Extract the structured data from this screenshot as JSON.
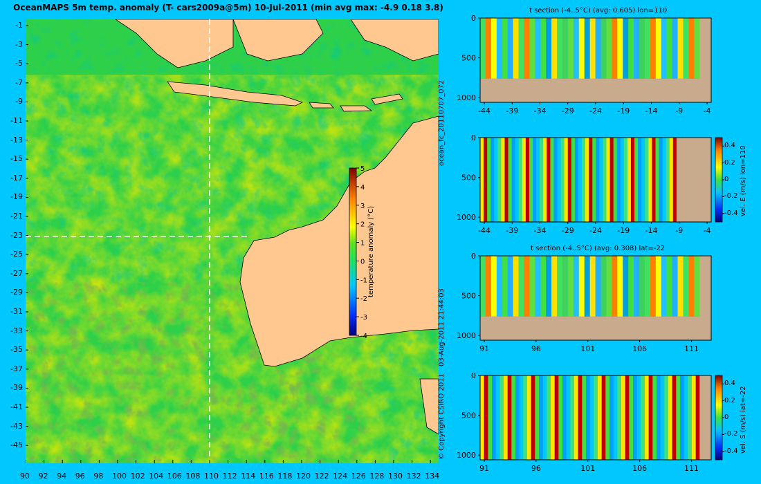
{
  "title": "OceanMAPS 5m temp. anomaly (T- cars2009a@5m) 10-Jul-2011 (min avg max: -4.9 0.18 3.8)",
  "map": {
    "lat_ticks": [
      "-1",
      "-3",
      "-5",
      "-7",
      "-9",
      "-11",
      "-13",
      "-15",
      "-17",
      "-19",
      "-21",
      "-23",
      "-25",
      "-27",
      "-29",
      "-31",
      "-33",
      "-35",
      "-37",
      "-39",
      "-41",
      "-43",
      "-45"
    ],
    "lon_ticks": [
      "90",
      "92",
      "94",
      "96",
      "98",
      "100",
      "102",
      "104",
      "106",
      "108",
      "110",
      "112",
      "114",
      "116",
      "118",
      "120",
      "122",
      "124",
      "126",
      "128",
      "130",
      "132",
      "134"
    ],
    "section_lon": "110",
    "section_lat": "-22",
    "colorbar": {
      "label": "temperature anomaly (°C)",
      "ticks": [
        "5",
        "4",
        "3",
        "2",
        "1",
        "0",
        "-1",
        "-2",
        "-3",
        "-4"
      ],
      "range": [
        -4,
        5
      ]
    }
  },
  "side_text": {
    "run_id": "ocean_fc_20110707_072",
    "timestamp": "03-Aug-2011 21:44:03",
    "copyright": "© Copyright CSIRO 2011"
  },
  "panels": [
    {
      "title": "t section (-4..5°C) (avg: 0.605) lon=110",
      "y_ticks": [
        "0",
        "500",
        "1000"
      ],
      "x_ticks": [
        "-44",
        "-39",
        "-34",
        "-29",
        "-24",
        "-19",
        "-14",
        "-9",
        "-4"
      ],
      "colorbar": false
    },
    {
      "title": "",
      "y_ticks": [
        "0",
        "500",
        "1000"
      ],
      "x_ticks": [
        "-44",
        "-39",
        "-34",
        "-29",
        "-24",
        "-19",
        "-14",
        "-9",
        "-4"
      ],
      "colorbar": true,
      "colorbar_label": "vel. E (m/s) lon=110",
      "colorbar_ticks": [
        "0.4",
        "0.2",
        "0",
        "-0.2",
        "-0.4"
      ]
    },
    {
      "title": "t section (-4..5°C) (avg: 0.308) lat=-22",
      "y_ticks": [
        "0",
        "500",
        "1000"
      ],
      "x_ticks": [
        "91",
        "96",
        "101",
        "106",
        "111"
      ],
      "colorbar": false
    },
    {
      "title": "",
      "y_ticks": [
        "0",
        "500",
        "1000"
      ],
      "x_ticks": [
        "91",
        "96",
        "101",
        "106",
        "111"
      ],
      "colorbar": true,
      "colorbar_label": "vel. S (m/s) lat=-22",
      "colorbar_ticks": [
        "0.4",
        "0.2",
        "0",
        "-0.2",
        "-0.4"
      ]
    }
  ]
}
